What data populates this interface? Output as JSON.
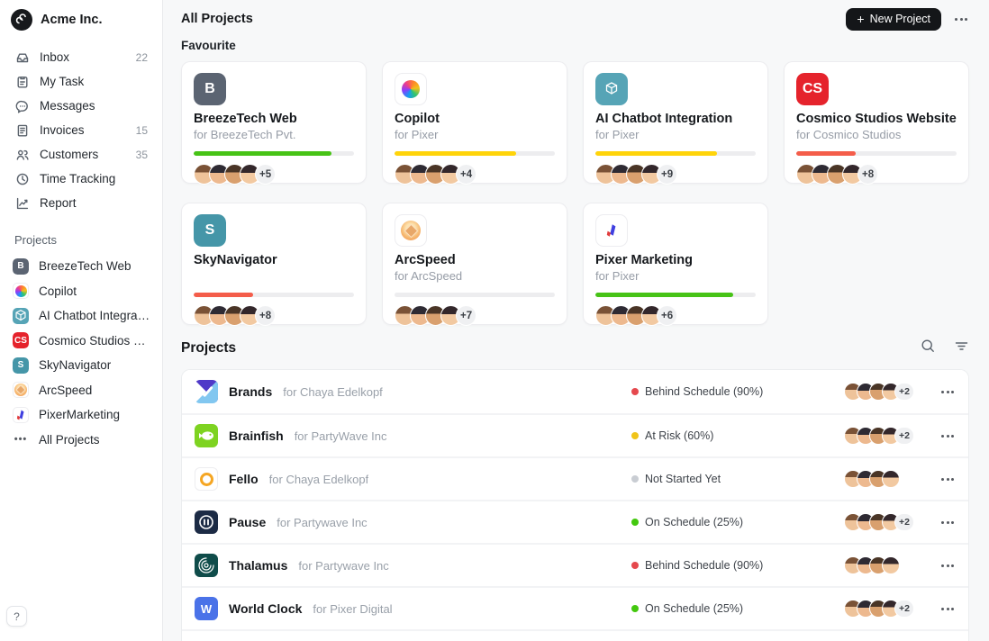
{
  "app": {
    "brand": "Acme Inc.",
    "help_label": "?"
  },
  "sidebar": {
    "nav": [
      {
        "label": "Inbox",
        "badge": "22",
        "icon": "inbox"
      },
      {
        "label": "My Task",
        "badge": "",
        "icon": "task"
      },
      {
        "label": "Messages",
        "badge": "",
        "icon": "messages"
      },
      {
        "label": "Invoices",
        "badge": "15",
        "icon": "invoices"
      },
      {
        "label": "Customers",
        "badge": "35",
        "icon": "customers"
      },
      {
        "label": "Time Tracking",
        "badge": "",
        "icon": "clock"
      },
      {
        "label": "Report",
        "badge": "",
        "icon": "report"
      }
    ],
    "projects_label": "Projects",
    "projects": [
      {
        "label": "BreezeTech Web",
        "icon": "monogram",
        "monogram": "B",
        "icon_bg": "#5b6472"
      },
      {
        "label": "Copilot",
        "icon": "copilot"
      },
      {
        "label": "AI Chatbot Integration",
        "icon": "cube",
        "icon_bg": "#56a4b6"
      },
      {
        "label": "Cosmico Studios Website",
        "icon": "monogram",
        "monogram": "CS",
        "icon_bg": "#e5232c"
      },
      {
        "label": "SkyNavigator",
        "icon": "monogram",
        "monogram": "S",
        "icon_bg": "#4596a8"
      },
      {
        "label": "ArcSpeed",
        "icon": "arcspeed"
      },
      {
        "label": "PixerMarketing",
        "icon": "pixer"
      },
      {
        "label": "All Projects",
        "icon": "dots"
      }
    ]
  },
  "header": {
    "title": "All Projects",
    "new_project_label": "New Project",
    "plus_glyph": "+"
  },
  "favourites": {
    "section_label": "Favourite",
    "cards": [
      {
        "name": "BreezeTech Web",
        "client": "for BreezeTech Pvt.",
        "progress": 86,
        "progress_color": "#47c316",
        "extra": "+5",
        "icon": "monogram",
        "monogram": "B",
        "icon_bg": "#5b6472"
      },
      {
        "name": "Copilot",
        "client": "for Pixer",
        "progress": 76,
        "progress_color": "#ffd40a",
        "extra": "+4",
        "icon": "copilot"
      },
      {
        "name": "AI Chatbot Integration",
        "client": "for Pixer",
        "progress": 76,
        "progress_color": "#ffd40a",
        "extra": "+9",
        "icon": "cube",
        "icon_bg": "#56a4b6"
      },
      {
        "name": "Cosmico Studios Website",
        "client": "for Cosmico Studios",
        "progress": 37,
        "progress_color": "#f45d4a",
        "extra": "+8",
        "icon": "monogram",
        "monogram": "CS",
        "icon_bg": "#e5232c"
      },
      {
        "name": "SkyNavigator",
        "client": "",
        "progress": 37,
        "progress_color": "#f45d4a",
        "extra": "+8",
        "icon": "monogram",
        "monogram": "S",
        "icon_bg": "#4596a8"
      },
      {
        "name": "ArcSpeed",
        "client": "for ArcSpeed",
        "progress": 0,
        "progress_color": "#47c316",
        "extra": "+7",
        "icon": "arcspeed"
      },
      {
        "name": "Pixer Marketing",
        "client": "for Pixer",
        "progress": 86,
        "progress_color": "#47c316",
        "extra": "+6",
        "icon": "pixer"
      }
    ]
  },
  "projects_table": {
    "section_label": "Projects",
    "rows": [
      {
        "name": "Brands",
        "client": "for Chaya Edelkopf",
        "status": "Behind Schedule (90%)",
        "status_color": "#e5484d",
        "extra": "+2",
        "icon": "brands"
      },
      {
        "name": "Brainfish",
        "client": "for PartyWave Inc",
        "status": "At Risk (60%)",
        "status_color": "#f0c419",
        "extra": "+2",
        "icon": "brainfish"
      },
      {
        "name": "Fello",
        "client": "for Chaya Edelkopf",
        "status": "Not Started Yet",
        "status_color": "#c9cdd3",
        "extra": "",
        "icon": "fello"
      },
      {
        "name": "Pause",
        "client": "for Partywave Inc",
        "status": "On Schedule (25%)",
        "status_color": "#43c80e",
        "extra": "+2",
        "icon": "pause"
      },
      {
        "name": "Thalamus",
        "client": "for Partywave Inc",
        "status": "Behind Schedule (90%)",
        "status_color": "#e5484d",
        "extra": "",
        "icon": "thalamus"
      },
      {
        "name": "World Clock",
        "client": "for Pixer Digital",
        "status": "On Schedule (25%)",
        "status_color": "#43c80e",
        "extra": "+2",
        "icon": "worldclock"
      }
    ]
  }
}
